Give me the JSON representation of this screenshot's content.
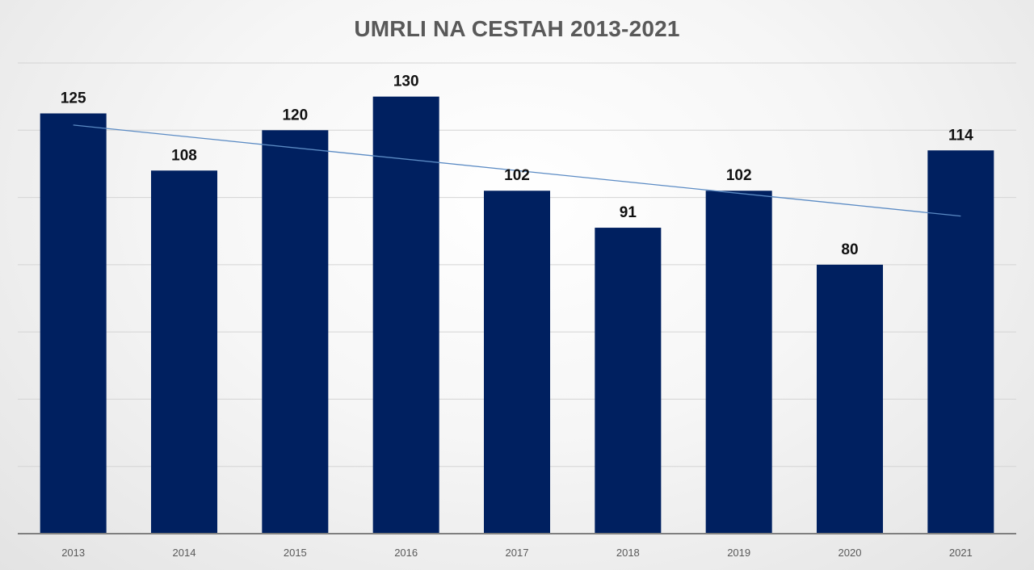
{
  "chart_data": {
    "type": "bar",
    "title": "UMRLI NA CESTAH 2013-2021",
    "xlabel": "",
    "ylabel": "",
    "categories": [
      "2013",
      "2014",
      "2015",
      "2016",
      "2017",
      "2018",
      "2019",
      "2020",
      "2021"
    ],
    "values": [
      125,
      108,
      120,
      130,
      102,
      91,
      102,
      80,
      114
    ],
    "ylim": [
      0,
      140
    ],
    "grid": true,
    "legend": "none",
    "trendline": "linear",
    "colors": {
      "bar": "#002060",
      "trendline": "#5b8bc4",
      "title": "#595959",
      "gridline": "#d4d4d4",
      "axis": "#7f7f7f"
    }
  }
}
